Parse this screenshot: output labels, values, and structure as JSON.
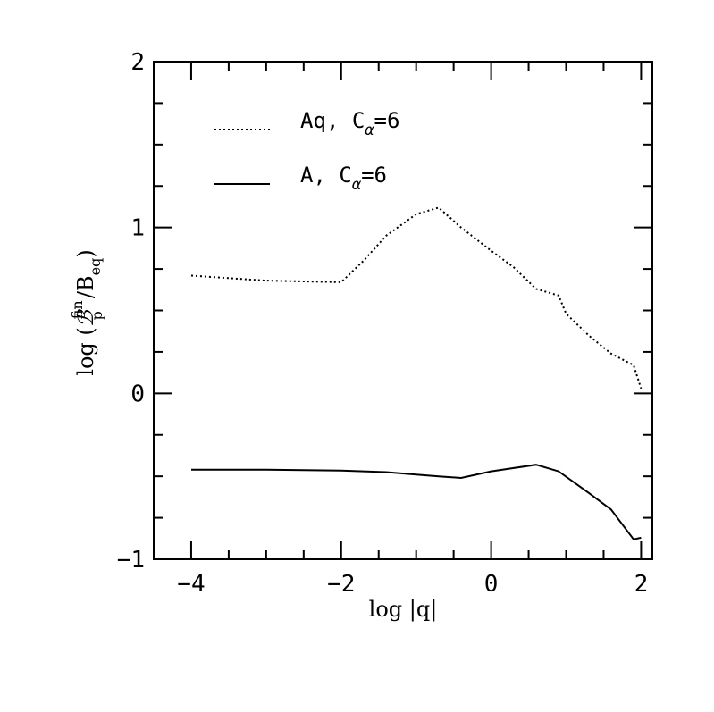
{
  "chart_data": {
    "type": "line",
    "xlabel": "log |q|",
    "ylabel": {
      "prefix": "log",
      "numerator": "ℬ",
      "sup": "fin",
      "sub": "p",
      "denominator": "B",
      "den_sub": "eq"
    },
    "xlim": [
      -4.5,
      2.15
    ],
    "ylim": [
      -1,
      2
    ],
    "xticks": [
      -4,
      -2,
      0,
      2
    ],
    "xtick_labels": [
      "−4",
      "−2",
      "0",
      "2"
    ],
    "yticks": [
      -1,
      0,
      1,
      2
    ],
    "ytick_labels": [
      "−1",
      "0",
      "1",
      "2"
    ],
    "x_minor_step": 0.5,
    "y_minor_step": 0.25,
    "grid": false,
    "legend_position": "top-left",
    "series": [
      {
        "name": "Aq,",
        "legend_subscript_symbol": "C",
        "legend_subscript": "α",
        "legend_value": "=6",
        "style": "dotted",
        "color": "#000000",
        "x": [
          -4,
          -3,
          -2,
          -1.7,
          -1.4,
          -1.0,
          -0.7,
          -0.4,
          0,
          0.3,
          0.6,
          0.9,
          1.0,
          1.3,
          1.6,
          1.9,
          2.0
        ],
        "y": [
          0.71,
          0.68,
          0.67,
          0.8,
          0.95,
          1.08,
          1.12,
          1.0,
          0.86,
          0.76,
          0.63,
          0.59,
          0.48,
          0.35,
          0.24,
          0.17,
          0.03
        ]
      },
      {
        "name": "A,",
        "legend_subscript_symbol": "C",
        "legend_subscript": "α",
        "legend_value": "=6",
        "style": "solid",
        "color": "#000000",
        "x": [
          -4,
          -3,
          -2,
          -1.4,
          -1.0,
          -0.7,
          -0.4,
          0,
          0.6,
          0.9,
          1.3,
          1.6,
          1.9,
          2.0
        ],
        "y": [
          -0.46,
          -0.46,
          -0.465,
          -0.475,
          -0.49,
          -0.5,
          -0.51,
          -0.47,
          -0.43,
          -0.47,
          -0.6,
          -0.7,
          -0.88,
          -0.87
        ]
      }
    ]
  }
}
